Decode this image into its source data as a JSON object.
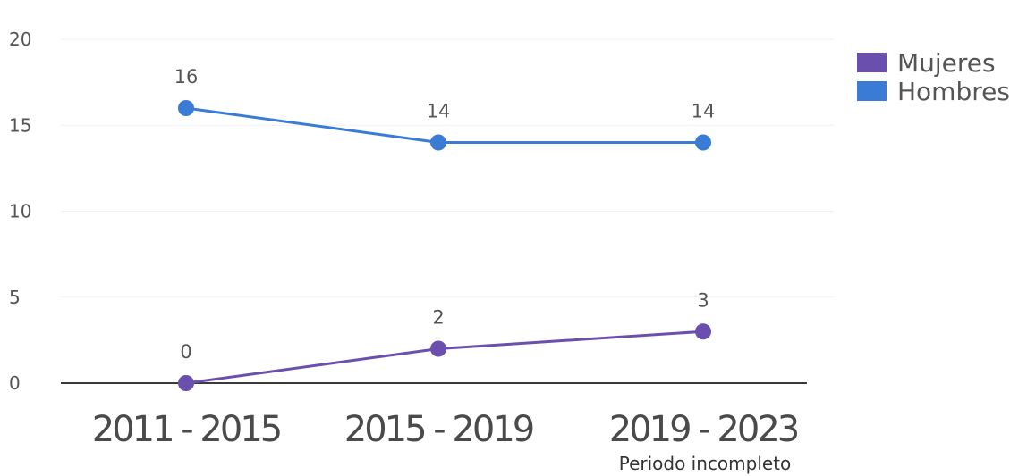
{
  "chart_data": {
    "type": "line",
    "categories": [
      "2011 - 2015",
      "2015 - 2019",
      "2019 - 2023"
    ],
    "category_notes": [
      "",
      "",
      "Periodo incompleto"
    ],
    "series": [
      {
        "name": "Mujeres",
        "values": [
          0,
          2,
          3
        ],
        "color": "#6a4fae"
      },
      {
        "name": "Hombres",
        "values": [
          16,
          14,
          14
        ],
        "color": "#3a7bd5"
      }
    ],
    "ylim": [
      0,
      20
    ],
    "yticks": [
      0,
      5,
      10,
      15,
      20
    ],
    "grid": true,
    "legend": "top-right",
    "title": "",
    "xlabel": "",
    "ylabel": ""
  }
}
